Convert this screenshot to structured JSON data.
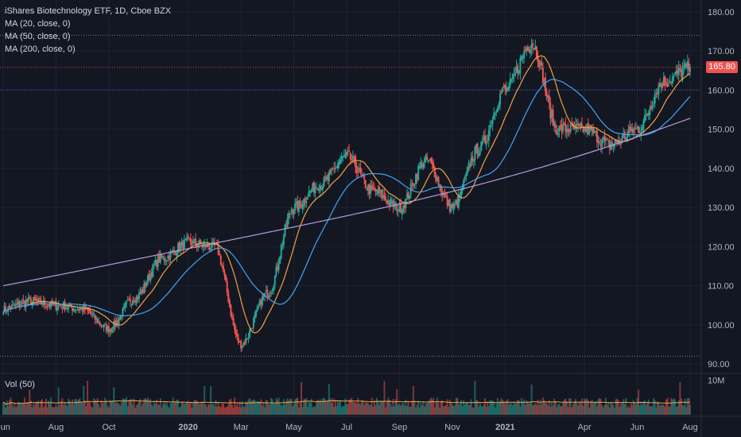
{
  "legend": {
    "title": "iShares Biotechnology ETF, 1D, Cboe BZX",
    "ma20": "MA (20, close, 0)",
    "ma50": "MA (50, close, 0)",
    "ma200": "MA (200, close, 0)",
    "volume": "Vol (50)"
  },
  "colors": {
    "background": "#131722",
    "up": "#26a69a",
    "down": "#ef5350",
    "ma20": "#f5a142",
    "ma50": "#42a5f5",
    "ma200": "#b39ddb",
    "volume_ma": "#f5a142",
    "price_tag": "#ef5350"
  },
  "chart_data": {
    "type": "candlestick",
    "symbol": "iShares Biotechnology ETF",
    "interval": "1D",
    "exchange": "Cboe BZX",
    "last_price": "165.80",
    "ylim": [
      88,
      183
    ],
    "y_ticks": [
      "180.00",
      "170.00",
      "160.00",
      "150.00",
      "140.00",
      "130.00",
      "120.00",
      "110.00",
      "100.00",
      "90.00"
    ],
    "x_ticks": [
      "Jun",
      "Aug",
      "Oct",
      "2020",
      "Mar",
      "May",
      "Jul",
      "Sep",
      "Nov",
      "2021",
      "Apr",
      "Jun",
      "Aug"
    ],
    "volume_tick": "10M",
    "horizontal_levels": [
      174.0,
      160.0,
      92.0
    ],
    "close_anchors": [
      {
        "date": "2019-06",
        "close": 104
      },
      {
        "date": "2019-07",
        "close": 106
      },
      {
        "date": "2019-08",
        "close": 105
      },
      {
        "date": "2019-09",
        "close": 104
      },
      {
        "date": "2019-10",
        "close": 99
      },
      {
        "date": "2019-11",
        "close": 107
      },
      {
        "date": "2019-12",
        "close": 117
      },
      {
        "date": "2020-01",
        "close": 121
      },
      {
        "date": "2020-02",
        "close": 120
      },
      {
        "date": "2020-03",
        "close": 95
      },
      {
        "date": "2020-04",
        "close": 108
      },
      {
        "date": "2020-05",
        "close": 130
      },
      {
        "date": "2020-06",
        "close": 136
      },
      {
        "date": "2020-07",
        "close": 143
      },
      {
        "date": "2020-08",
        "close": 134
      },
      {
        "date": "2020-09",
        "close": 130
      },
      {
        "date": "2020-10",
        "close": 142
      },
      {
        "date": "2020-11",
        "close": 130
      },
      {
        "date": "2020-12",
        "close": 145
      },
      {
        "date": "2021-01",
        "close": 160
      },
      {
        "date": "2021-02",
        "close": 172
      },
      {
        "date": "2021-03",
        "close": 150
      },
      {
        "date": "2021-04",
        "close": 150
      },
      {
        "date": "2021-05",
        "close": 146
      },
      {
        "date": "2021-06",
        "close": 150
      },
      {
        "date": "2021-07",
        "close": 162
      },
      {
        "date": "2021-08",
        "close": 165.8
      }
    ],
    "ma200_range": [
      110,
      153
    ],
    "volume_range_millions": [
      1,
      11
    ]
  }
}
